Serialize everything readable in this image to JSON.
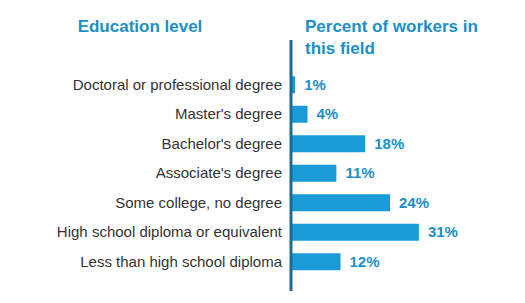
{
  "chart_data": {
    "type": "bar",
    "orientation": "horizontal",
    "y_label": "Education level",
    "x_label": "Percent of workers in this field",
    "categories": [
      "Doctoral or professional degree",
      "Master's degree",
      "Bachelor's degree",
      "Associate's degree",
      "Some college, no degree",
      "High school diploma or equivalent",
      "Less than high school diploma"
    ],
    "values": [
      1,
      4,
      18,
      11,
      24,
      31,
      12
    ],
    "value_labels": [
      "1%",
      "4%",
      "18%",
      "11%",
      "24%",
      "31%",
      "12%"
    ],
    "color": "#1a9ad6",
    "xlim": [
      0,
      40
    ],
    "data_labels": true,
    "tick_labels": "y",
    "grid": false
  }
}
